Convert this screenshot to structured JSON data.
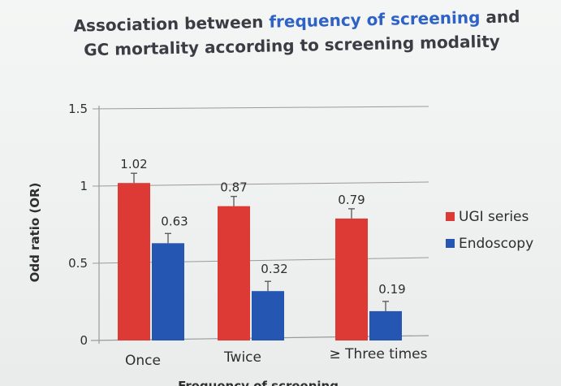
{
  "title": {
    "line1_prefix": "Association between ",
    "line1_highlight": "frequency of screening",
    "line1_suffix": " and",
    "line2": "GC mortality according to screening modality"
  },
  "colors": {
    "ugi": "#dd3a36",
    "endoscopy": "#2556b2",
    "text": "#2e2e2e",
    "grid": "#9a9a9a",
    "title_accent": "#2f62c6"
  },
  "chart_data": {
    "type": "bar",
    "categories": [
      "Once",
      "Twice",
      "≥ Three times"
    ],
    "series": [
      {
        "name": "UGI series",
        "values": [
          1.02,
          0.87,
          0.79
        ],
        "labels": [
          "1.02",
          "0.87",
          "0.79"
        ]
      },
      {
        "name": "Endoscopy",
        "values": [
          0.63,
          0.32,
          0.19
        ],
        "labels": [
          "0.63",
          "0.32",
          "0.19"
        ]
      }
    ],
    "ylabel": "Odd ratio (OR)",
    "xlabel": "Frequency of screening",
    "yticks": [
      0,
      0.5,
      1,
      1.5
    ],
    "ytick_labels": [
      "0",
      "0.5",
      "1",
      "1.5"
    ],
    "ylim": [
      0,
      1.5
    ],
    "grid": true,
    "legend_position": "right"
  }
}
